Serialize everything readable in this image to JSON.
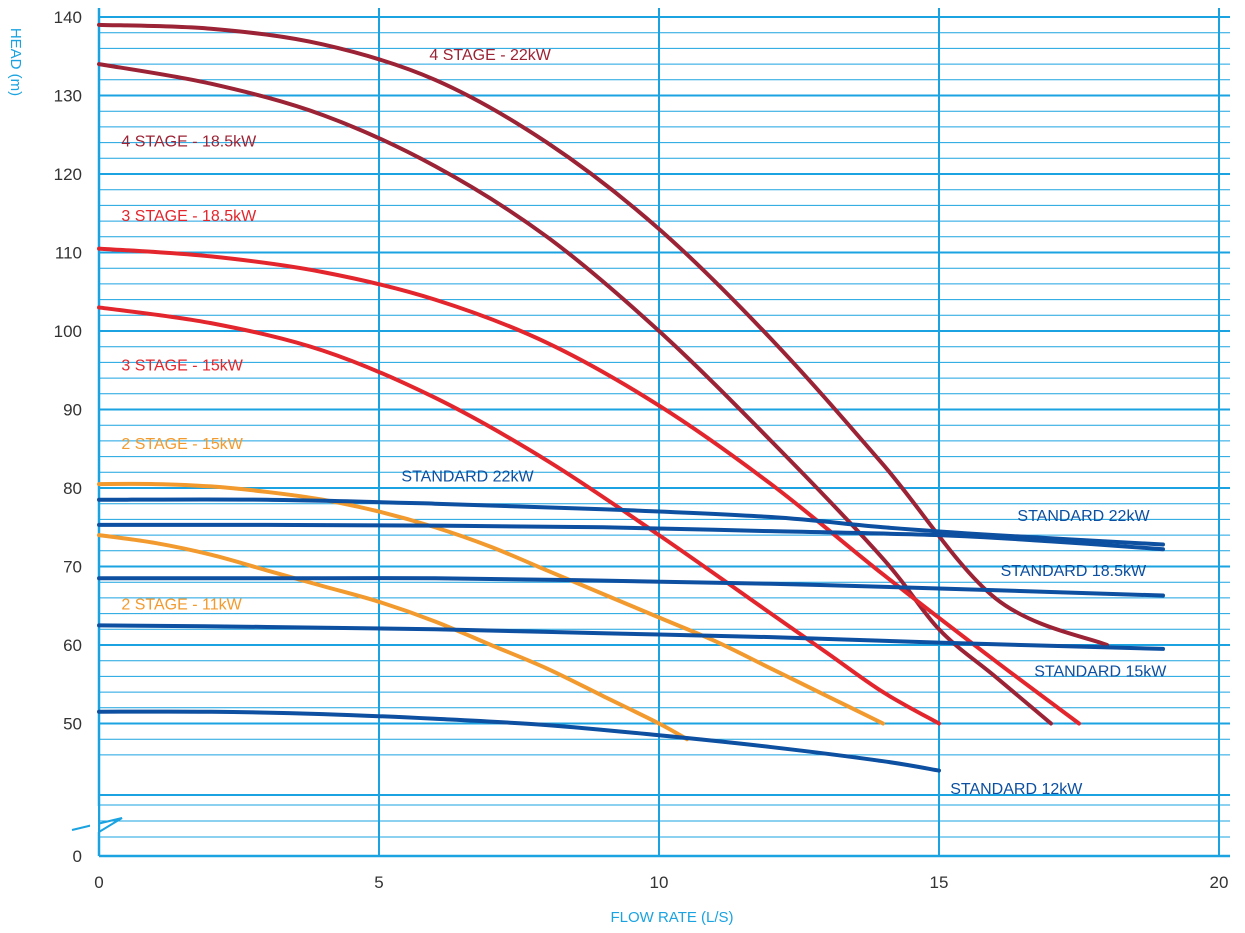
{
  "colors": {
    "grid": "#1aa3e0",
    "axis_text": "#1aa3e0",
    "tick_text": "#333333",
    "standard": "#0d4fa0",
    "stage4": "#9b2335",
    "stage3": "#e3262d",
    "stage2": "#f29a2e"
  },
  "chart_data": {
    "type": "line",
    "title": "",
    "xlabel": "FLOW RATE (L/S)",
    "ylabel": "HEAD (m)",
    "xlim": [
      0,
      20
    ],
    "ylim": [
      0,
      140
    ],
    "axis_break": "between 0 and 44",
    "grid": true,
    "x_ticks": [
      "0",
      "5",
      "10",
      "15",
      "20"
    ],
    "y_ticks": [
      "0",
      "50",
      "60",
      "70",
      "80",
      "90",
      "100",
      "110",
      "120",
      "130",
      "140"
    ],
    "series": [
      {
        "name": "4 STAGE - 22kW",
        "color_key": "stage4",
        "x": [
          0,
          2,
          4,
          6,
          8,
          10,
          12,
          14,
          16,
          18
        ],
        "y": [
          139,
          138.5,
          136.5,
          132,
          124,
          113,
          99,
          83,
          66,
          60
        ]
      },
      {
        "name": "4 STAGE - 18.5kW",
        "color_key": "stage4",
        "x": [
          0,
          2,
          4,
          6,
          8,
          10,
          12,
          14,
          15,
          16,
          17
        ],
        "y": [
          134,
          131.5,
          127.5,
          121,
          112,
          100,
          86,
          71,
          62,
          56,
          50
        ]
      },
      {
        "name": "3 STAGE - 18.5kW",
        "color_key": "stage3",
        "x": [
          0,
          2,
          4,
          6,
          8,
          10,
          12,
          14,
          16,
          17.5
        ],
        "y": [
          110.5,
          109.5,
          107.5,
          104,
          98.5,
          90.5,
          80.5,
          69,
          58,
          50
        ]
      },
      {
        "name": "3 STAGE - 15kW",
        "color_key": "stage3",
        "x": [
          0,
          2,
          4,
          6,
          8,
          10,
          12,
          13,
          14,
          15
        ],
        "y": [
          103,
          101,
          97.5,
          91.5,
          83.5,
          74,
          64,
          59,
          54,
          50
        ]
      },
      {
        "name": "2 STAGE - 15kW",
        "color_key": "stage2",
        "x": [
          0,
          1,
          2,
          3,
          4,
          5,
          6,
          7,
          8,
          9,
          10,
          11,
          12,
          13,
          14
        ],
        "y": [
          80.5,
          80.5,
          80.2,
          79.5,
          78.5,
          77,
          75,
          72.5,
          69.5,
          66.5,
          63.5,
          60.5,
          57,
          53.5,
          50
        ]
      },
      {
        "name": "2 STAGE - 11kW",
        "color_key": "stage2",
        "x": [
          0,
          1,
          2,
          3,
          4,
          5,
          6,
          7,
          8,
          9,
          10,
          10.5
        ],
        "y": [
          74,
          73,
          71.5,
          69.5,
          67.5,
          65.5,
          63,
          60,
          57,
          53.5,
          50,
          48
        ]
      },
      {
        "name": "STANDARD 22kW",
        "color_key": "standard",
        "x": [
          0,
          3,
          6,
          9,
          12,
          14,
          16,
          19
        ],
        "y": [
          78.5,
          78.5,
          78,
          77.3,
          76.3,
          75,
          74,
          72.8
        ]
      },
      {
        "name": "STANDARD 18.5kW",
        "color_key": "standard",
        "x": [
          0,
          3,
          6,
          9,
          12,
          15,
          17,
          19
        ],
        "y": [
          75.3,
          75.3,
          75.2,
          75,
          74.5,
          74,
          73.2,
          72.2
        ]
      },
      {
        "name": "STANDARD 15kW",
        "color_key": "standard",
        "x": [
          0,
          3,
          6,
          9,
          12,
          15,
          19
        ],
        "y": [
          68.5,
          68.5,
          68.5,
          68.2,
          67.8,
          67.2,
          66.3
        ]
      },
      {
        "name": "STANDARD 12kW",
        "color_key": "standard",
        "x": [
          0,
          3,
          6,
          9,
          12,
          15,
          19
        ],
        "y": [
          62.5,
          62.3,
          62,
          61.5,
          61,
          60.3,
          59.5
        ]
      },
      {
        "name": "",
        "color_key": "standard",
        "x": [
          0,
          2,
          4,
          6,
          8,
          10,
          12,
          14,
          15
        ],
        "y": [
          51.5,
          51.5,
          51.2,
          50.6,
          49.8,
          48.5,
          47,
          45.2,
          44
        ]
      }
    ],
    "labels": [
      {
        "text": "4 STAGE - 22kW",
        "color_key": "stage4",
        "x": 5.9,
        "y": 134.5
      },
      {
        "text": "4 STAGE - 18.5kW",
        "color_key": "stage4",
        "x": 0.4,
        "y": 123.5
      },
      {
        "text": "3 STAGE - 18.5kW",
        "color_key": "stage3",
        "x": 0.4,
        "y": 114
      },
      {
        "text": "3 STAGE - 15kW",
        "color_key": "stage3",
        "x": 0.4,
        "y": 95
      },
      {
        "text": "2 STAGE - 15kW",
        "color_key": "stage2",
        "x": 0.4,
        "y": 85
      },
      {
        "text": "STANDARD 22kW",
        "color_key": "standard",
        "x": 5.4,
        "y": 80.8
      },
      {
        "text": "STANDARD 22kW",
        "color_key": "standard",
        "x": 16.4,
        "y": 75.8
      },
      {
        "text": "STANDARD 18.5kW",
        "color_key": "standard",
        "x": 16.1,
        "y": 68.8
      },
      {
        "text": "2 STAGE - 11kW",
        "color_key": "stage2",
        "x": 0.4,
        "y": 64.5
      },
      {
        "text": "STANDARD 15kW",
        "color_key": "standard",
        "x": 16.7,
        "y": 56
      },
      {
        "text": "STANDARD 12kW",
        "color_key": "standard",
        "x": 15.2,
        "y": 41
      }
    ]
  }
}
